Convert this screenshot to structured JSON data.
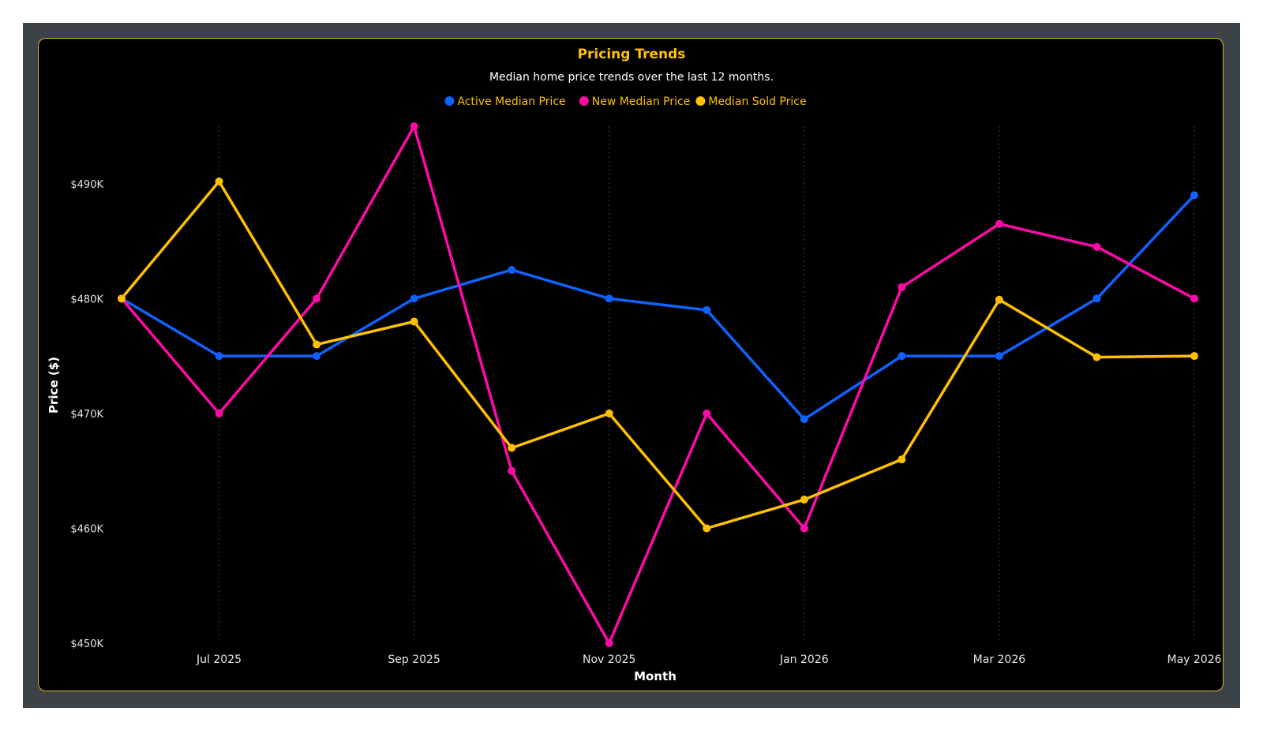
{
  "colors": {
    "frame": "#3d4246",
    "card_bg": "#000000",
    "card_border": "#d8bd1c",
    "title": "#ffc000",
    "subtitle": "#ffffff",
    "axis_text": "#e6e6e6",
    "grid": "#555555"
  },
  "chart_data": {
    "type": "line",
    "title": "Pricing Trends",
    "subtitle": "Median home price trends over the last 12 months.",
    "xlabel": "Month",
    "ylabel": "Price ($)",
    "ylim": [
      450000,
      495000
    ],
    "y_ticks": [
      450000,
      460000,
      470000,
      480000,
      490000
    ],
    "y_tick_labels": [
      "$450K",
      "$460K",
      "$470K",
      "$480K",
      "$490K"
    ],
    "x": [
      "2025-06",
      "2025-07",
      "2025-08",
      "2025-09",
      "2025-10",
      "2025-11",
      "2025-12",
      "2026-01",
      "2026-02",
      "2026-03",
      "2026-04",
      "2026-05"
    ],
    "x_tick_labels": [
      "Jul 2025",
      "Sep 2025",
      "Nov 2025",
      "Jan 2026",
      "Mar 2026",
      "May 2026"
    ],
    "x_tick_months": [
      "2025-07",
      "2025-09",
      "2025-11",
      "2026-01",
      "2026-03",
      "2026-05"
    ],
    "grid": "vertical dotted at labeled months",
    "legend_position": "top-center",
    "series": [
      {
        "name": "Active Median Price",
        "color": "#0f62fe",
        "values": [
          480000,
          475000,
          475000,
          480000,
          482500,
          480000,
          479000,
          469500,
          475000,
          475000,
          480000,
          489000
        ]
      },
      {
        "name": "New Median Price",
        "color": "#ff0aa8",
        "values": [
          480000,
          470000,
          480000,
          495000,
          465000,
          450000,
          470000,
          460000,
          481000,
          486500,
          484500,
          480000
        ]
      },
      {
        "name": "Median Sold Price",
        "color": "#ffc000",
        "values": [
          480000,
          490200,
          476000,
          478000,
          467000,
          470000,
          460000,
          462500,
          466000,
          479900,
          474900,
          475000
        ]
      }
    ]
  }
}
